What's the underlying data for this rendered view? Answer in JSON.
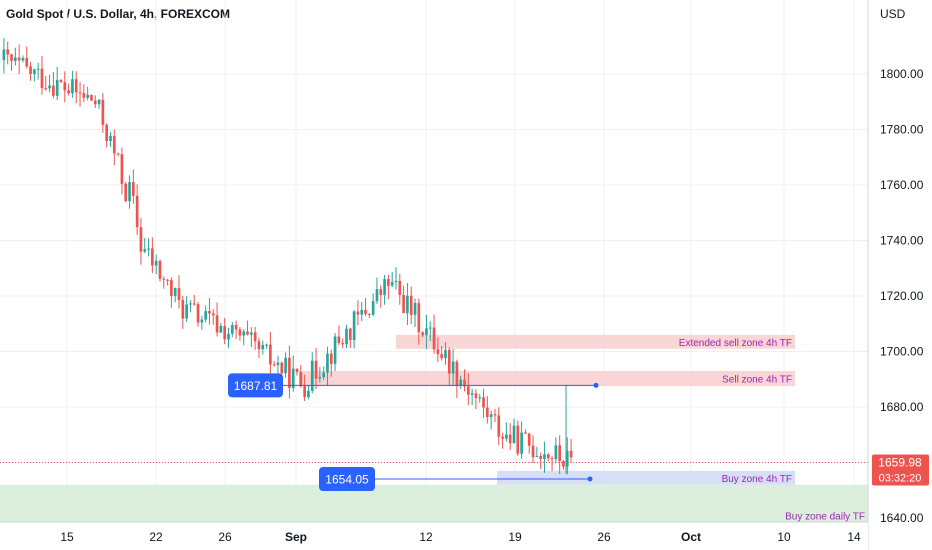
{
  "chart_data": {
    "type": "candlestick",
    "title": "Gold Spot / U.S. Dollar, 4h, FOREXCOM",
    "currency": "USD",
    "ylim": [
      1638,
      1915
    ],
    "y_ticks": [
      "1640.00",
      "1660.00",
      "1680.00",
      "1700.00",
      "1720.00",
      "1740.00",
      "1760.00",
      "1780.00",
      "1800.00"
    ],
    "x_labels": [
      "15",
      "22",
      "26",
      "Sep",
      "12",
      "19",
      "26",
      "Oct",
      "10",
      "14"
    ],
    "last_price": "1659.98",
    "countdown": "03:32:20",
    "colors": {
      "up": "#26a69a",
      "down": "#ef5350",
      "callout": "#2962ff",
      "sell_zone": "#f8d0d2",
      "buy_zone": "#d2dcf4",
      "daily_zone": "#d8ecd8",
      "zone_text": "#9c27b0"
    },
    "anchors": {
      "day_index": [
        0,
        20,
        22,
        25,
        27,
        28,
        30,
        39,
        53,
        66,
        85,
        110,
        125
      ],
      "price": [
        1805,
        1790,
        1782,
        1768,
        1757,
        1758,
        1739,
        1716,
        1704,
        1688,
        1725,
        1670,
        1660
      ]
    },
    "annotations": [
      {
        "name": "price-callout-upper",
        "text": "1687.81",
        "value": 1687.81
      },
      {
        "name": "price-callout-lower",
        "text": "1654.05",
        "value": 1654.05
      }
    ],
    "zones": [
      {
        "name": "extended-sell-zone",
        "label": "Extended sell zone 4h TF",
        "y_top": 1706,
        "y_bottom": 1701,
        "kind": "sell"
      },
      {
        "name": "sell-zone",
        "label": "Sell zone 4h TF",
        "y_top": 1693,
        "y_bottom": 1687.5,
        "kind": "sell"
      },
      {
        "name": "buy-zone",
        "label": "Buy zone 4h TF",
        "y_top": 1657,
        "y_bottom": 1652,
        "kind": "buy"
      },
      {
        "name": "buy-zone-daily",
        "label": "Buy zone daily TF",
        "y_top": 1652,
        "y_bottom": 1638,
        "kind": "daily"
      }
    ]
  }
}
